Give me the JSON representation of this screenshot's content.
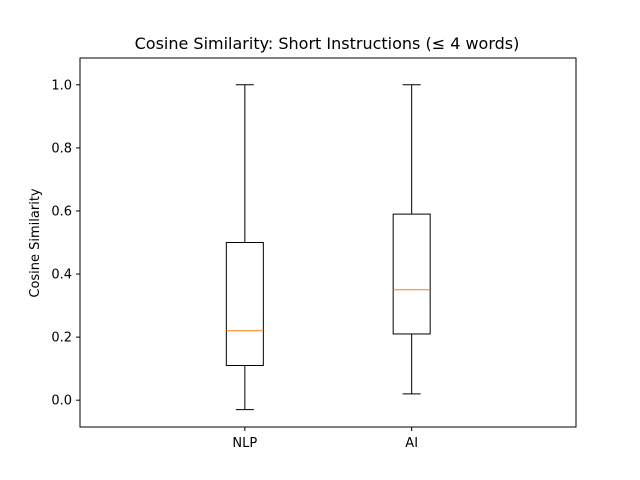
{
  "chart_data": {
    "type": "box",
    "title": "Cosine Similarity: Short Instructions (≤ 4 words)",
    "xlabel": "",
    "ylabel": "Cosine Similarity",
    "ylim": [
      -0.085,
      1.085
    ],
    "yticks": [
      "0.0",
      "0.2",
      "0.4",
      "0.6",
      "0.8",
      "1.0"
    ],
    "grid": false,
    "categories": [
      "NLP",
      "AI"
    ],
    "boxes": [
      {
        "category": "NLP",
        "whisker_low": -0.03,
        "q1": 0.11,
        "median": 0.22,
        "q3": 0.5,
        "whisker_high": 1.0
      },
      {
        "category": "AI",
        "whisker_low": 0.02,
        "q1": 0.21,
        "median": 0.35,
        "q3": 0.59,
        "whisker_high": 1.0
      }
    ],
    "colors": {
      "box": "#000000",
      "median": "#ff7f0e"
    }
  }
}
